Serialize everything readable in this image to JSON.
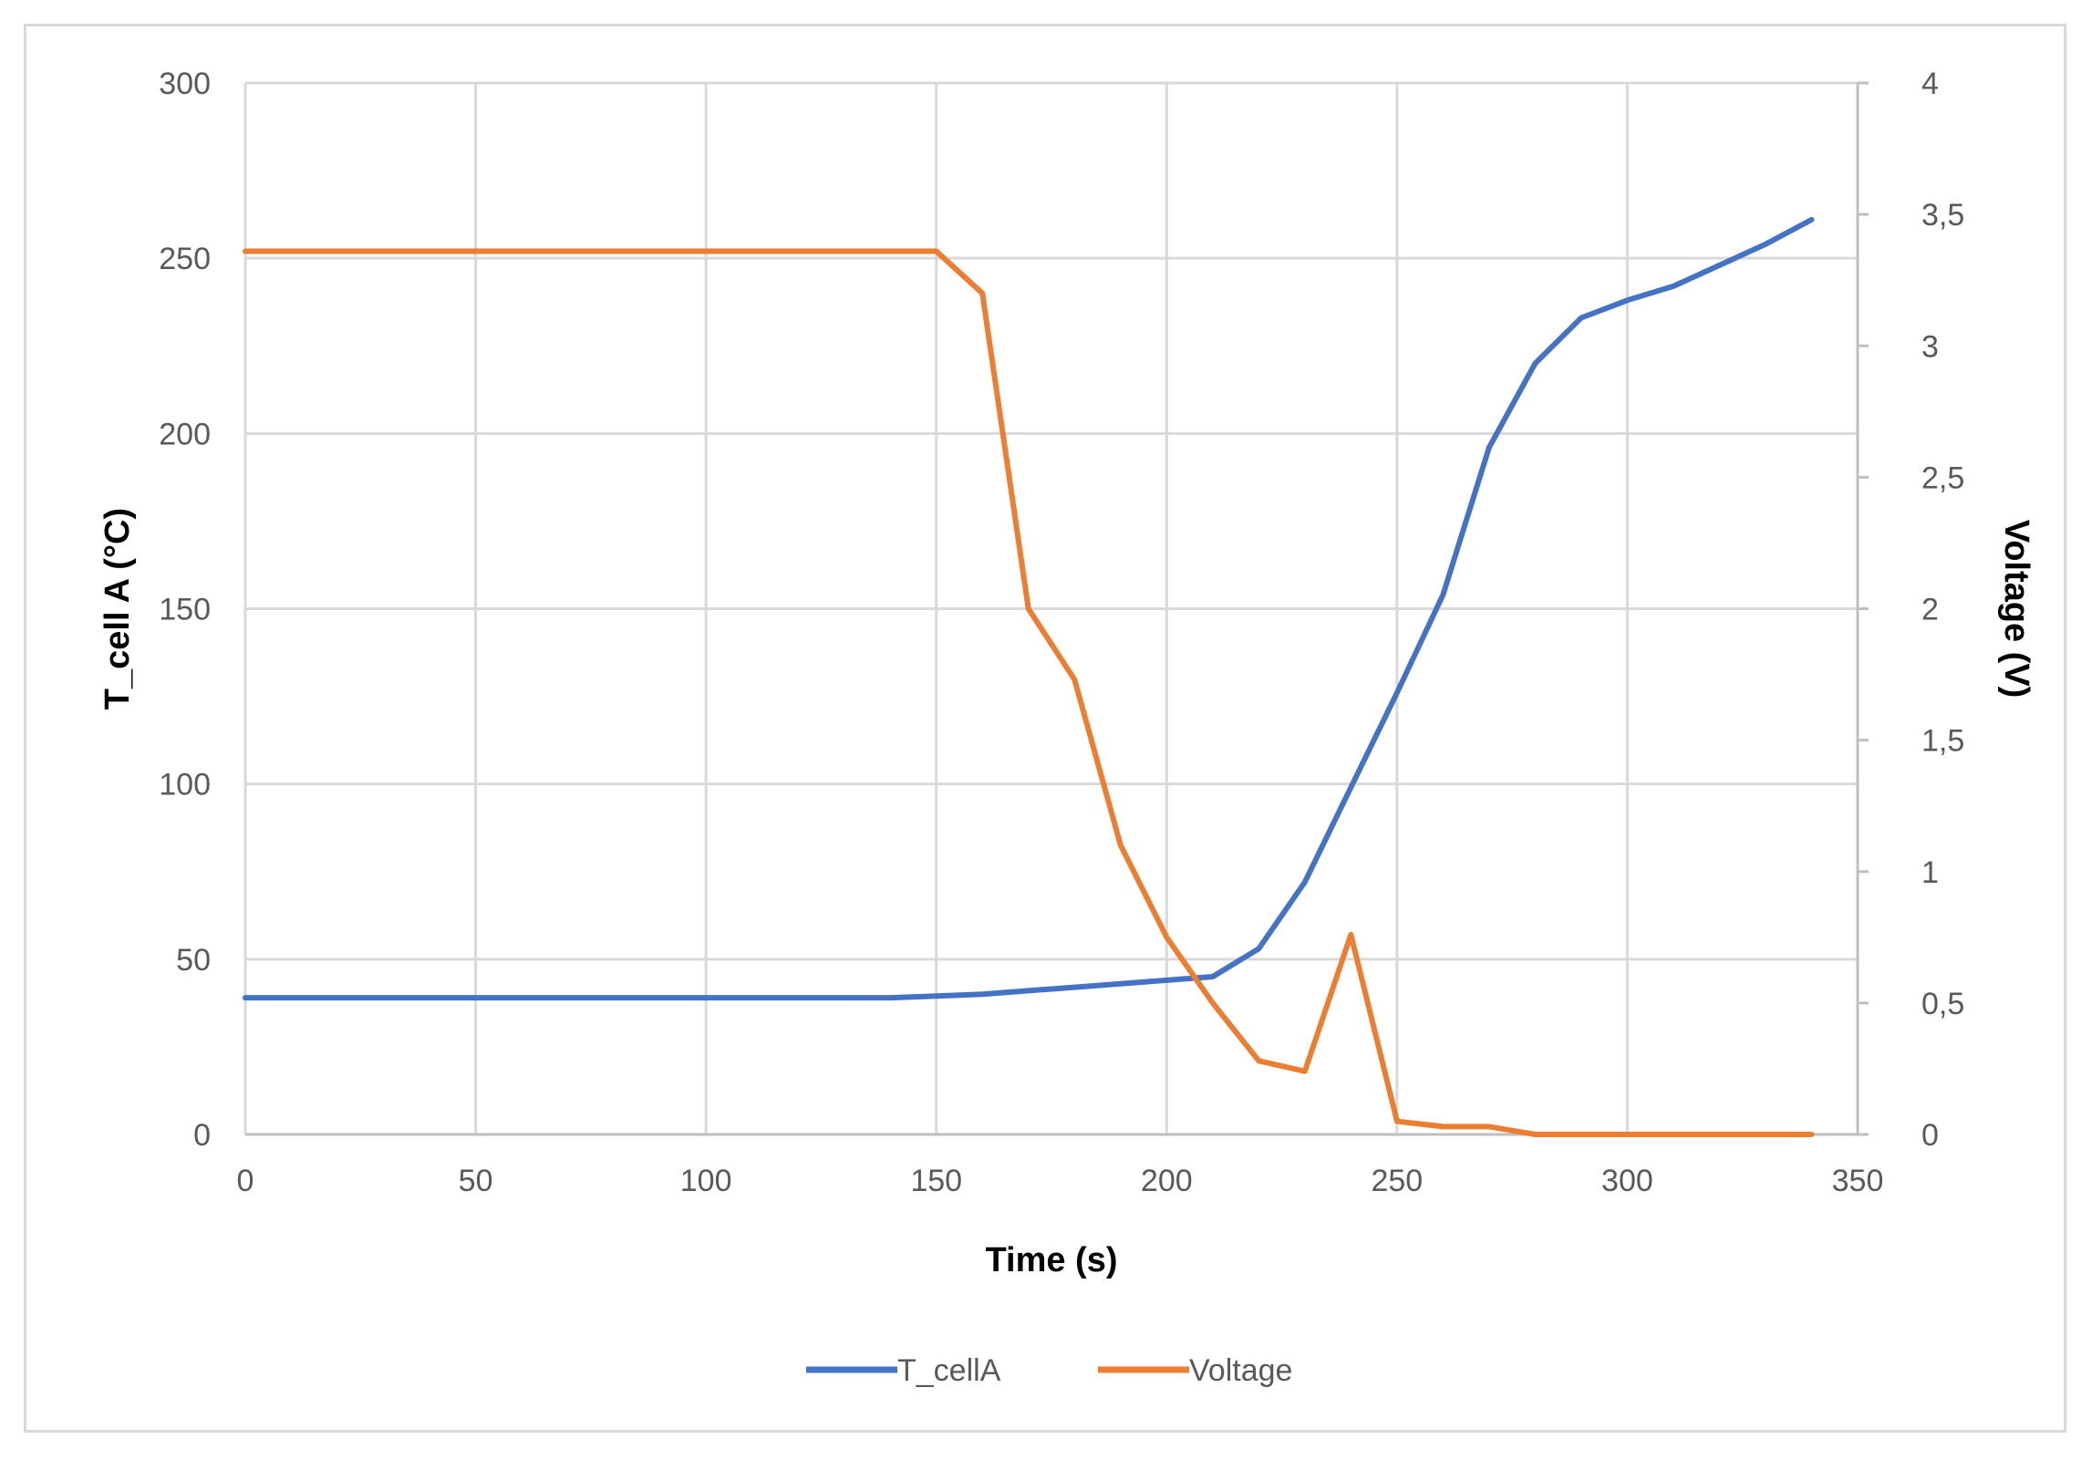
{
  "chart_data": {
    "type": "line",
    "xlabel": "Time (s)",
    "ylabel": "T_cell A (°C)",
    "y2label": "Voltage (V)",
    "xlim": [
      0,
      350
    ],
    "ylim": [
      0,
      300
    ],
    "y2lim": [
      0,
      4
    ],
    "x_ticks": [
      "0",
      "50",
      "100",
      "150",
      "200",
      "250",
      "300",
      "350"
    ],
    "y_ticks": [
      "0",
      "50",
      "100",
      "150",
      "200",
      "250",
      "300"
    ],
    "y2_ticks": [
      "0",
      "0,5",
      "1",
      "1,5",
      "2",
      "2,5",
      "3",
      "3,5",
      "4"
    ],
    "grid": true,
    "legend_position": "bottom",
    "series": [
      {
        "name": "T_cellA",
        "axis": "left",
        "color": "#4472c4",
        "x": [
          0,
          10,
          20,
          30,
          40,
          50,
          60,
          70,
          80,
          90,
          100,
          110,
          120,
          130,
          140,
          150,
          160,
          170,
          180,
          190,
          200,
          210,
          220,
          230,
          240,
          250,
          260,
          270,
          280,
          290,
          300,
          310,
          320,
          330,
          340
        ],
        "y": [
          39,
          39,
          39,
          39,
          39,
          39,
          39,
          39,
          39,
          39,
          39,
          39,
          39,
          39,
          39,
          39.5,
          40,
          41,
          42,
          43,
          44,
          45,
          53,
          72,
          99,
          126,
          154,
          196,
          220,
          233,
          238,
          242,
          248,
          254,
          261
        ]
      },
      {
        "name": "Voltage",
        "axis": "right",
        "color": "#ed7d31",
        "x": [
          0,
          10,
          20,
          30,
          40,
          50,
          60,
          70,
          80,
          90,
          100,
          110,
          120,
          130,
          140,
          150,
          160,
          170,
          180,
          190,
          200,
          210,
          220,
          230,
          240,
          250,
          260,
          270,
          280,
          290,
          300,
          310,
          320,
          330,
          340
        ],
        "y": [
          3.36,
          3.36,
          3.36,
          3.36,
          3.36,
          3.36,
          3.36,
          3.36,
          3.36,
          3.36,
          3.36,
          3.36,
          3.36,
          3.36,
          3.36,
          3.36,
          3.2,
          2.0,
          1.73,
          1.1,
          0.75,
          0.5,
          0.28,
          0.24,
          0.76,
          0.05,
          0.03,
          0.03,
          0.0,
          0.0,
          0.0,
          0.0,
          0.0,
          0.0,
          0.0
        ]
      }
    ]
  }
}
